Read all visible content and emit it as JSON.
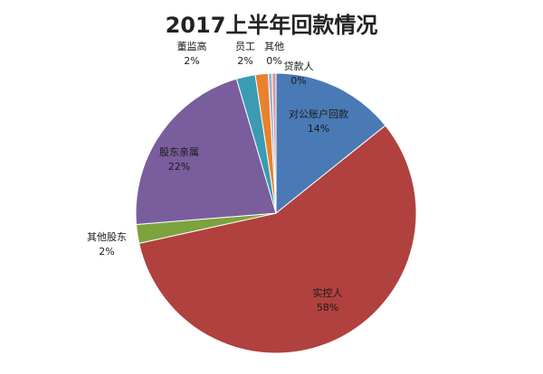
{
  "chart_data": {
    "type": "pie",
    "title": "2017上半年回款情况",
    "start_angle_deg": 0,
    "direction": "clockwise",
    "legend": "none",
    "slices": [
      {
        "name": "对公账户回款",
        "percent_label": "14%",
        "value": 14.4,
        "color": "#4a7ab5"
      },
      {
        "name": "实控人",
        "percent_label": "58%",
        "value": 58.0,
        "color": "#b0413e"
      },
      {
        "name": "其他股东",
        "percent_label": "2%",
        "value": 2.2,
        "color": "#7ca33e"
      },
      {
        "name": "股东亲属",
        "percent_label": "22%",
        "value": 22.0,
        "color": "#7a5d9d"
      },
      {
        "name": "董监高",
        "percent_label": "2%",
        "value": 2.2,
        "color": "#3a9bb3"
      },
      {
        "name": "员工",
        "percent_label": "2%",
        "value": 1.5,
        "color": "#e8822e"
      },
      {
        "name": "其他",
        "percent_label": "0%",
        "value": 0.45,
        "color": "#9db3d6"
      },
      {
        "name": "贷款人",
        "percent_label": "0%",
        "value": 0.45,
        "color": "#d99694"
      }
    ]
  }
}
